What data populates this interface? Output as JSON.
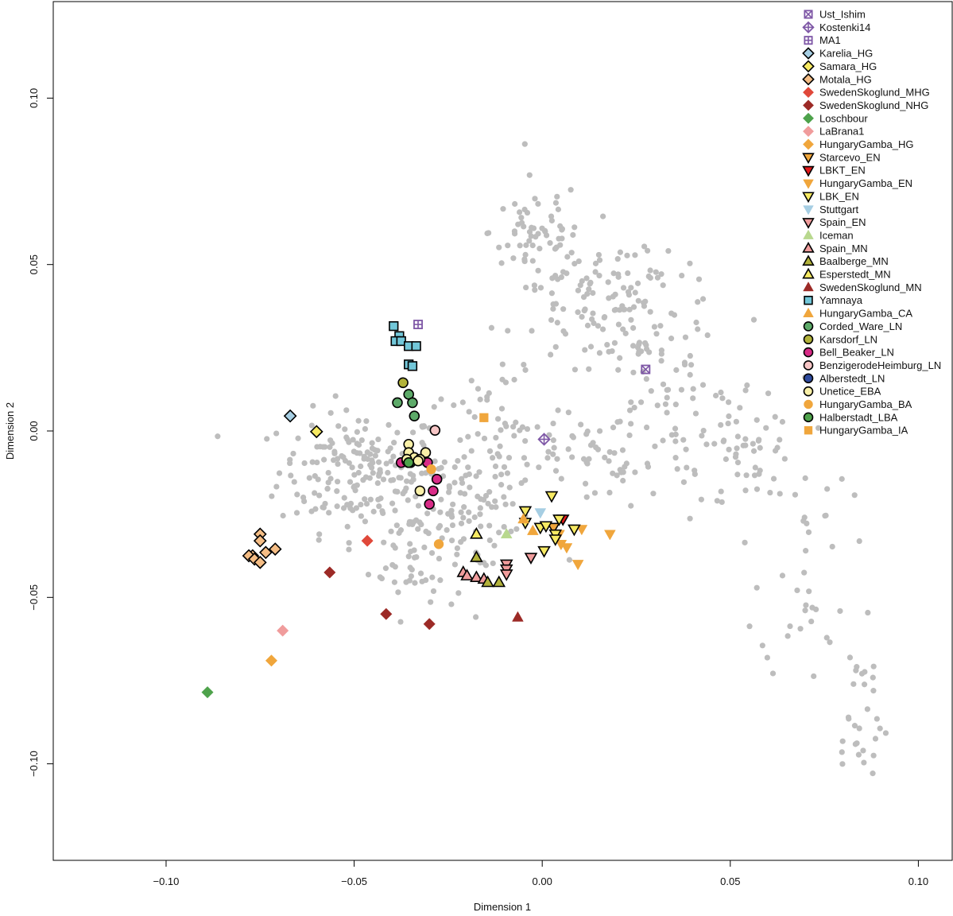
{
  "chart_data": {
    "type": "scatter",
    "title": "",
    "xlabel": "Dimension 1",
    "ylabel": "Dimension 2",
    "xlim": [
      -0.13,
      0.109
    ],
    "ylim": [
      -0.129,
      0.129
    ],
    "xticks": [
      -0.1,
      -0.05,
      0.0,
      0.05,
      0.1
    ],
    "xtick_labels": [
      "−0.10",
      "−0.05",
      "0.00",
      "0.05",
      "0.10"
    ],
    "yticks": [
      -0.1,
      -0.05,
      0.0,
      0.05,
      0.1
    ],
    "ytick_labels": [
      "−0.10",
      "−0.05",
      "0.00",
      "0.05",
      "0.10"
    ],
    "grid": false,
    "legend_position": "top-right",
    "background_points": {
      "color": "#bdbdbd",
      "clusters": [
        {
          "cx": -0.048,
          "cy": -0.012,
          "sx": 0.011,
          "sy": 0.009,
          "n": 190
        },
        {
          "cx": -0.034,
          "cy": -0.036,
          "sx": 0.006,
          "sy": 0.01,
          "n": 60
        },
        {
          "cx": -0.013,
          "cy": -0.008,
          "sx": 0.009,
          "sy": 0.012,
          "n": 80
        },
        {
          "cx": -0.002,
          "cy": 0.06,
          "sx": 0.006,
          "sy": 0.008,
          "n": 55
        },
        {
          "cx": 0.013,
          "cy": 0.04,
          "sx": 0.01,
          "sy": 0.01,
          "n": 80
        },
        {
          "cx": 0.027,
          "cy": 0.035,
          "sx": 0.011,
          "sy": 0.008,
          "n": 60
        },
        {
          "cx": 0.032,
          "cy": 0.005,
          "sx": 0.012,
          "sy": 0.014,
          "n": 70
        },
        {
          "cx": 0.015,
          "cy": -0.008,
          "sx": 0.012,
          "sy": 0.008,
          "n": 50
        },
        {
          "cx": 0.055,
          "cy": -0.005,
          "sx": 0.006,
          "sy": 0.01,
          "n": 40
        },
        {
          "cx": 0.07,
          "cy": -0.035,
          "sx": 0.006,
          "sy": 0.02,
          "n": 40
        },
        {
          "cx": 0.084,
          "cy": -0.085,
          "sx": 0.004,
          "sy": 0.013,
          "n": 30
        },
        {
          "cx": -0.022,
          "cy": -0.025,
          "sx": 0.006,
          "sy": 0.008,
          "n": 50
        }
      ]
    },
    "series": [
      {
        "name": "Ust_Ishim",
        "marker": "square-x",
        "color": "#7e57a6",
        "outline": "#7e57a6",
        "points": [
          [
            0.0275,
            0.0185
          ]
        ]
      },
      {
        "name": "Kostenki14",
        "marker": "diamond-plus",
        "color": "#7e57a6",
        "outline": "#7e57a6",
        "points": [
          [
            0.0005,
            -0.0025
          ]
        ]
      },
      {
        "name": "MA1",
        "marker": "square-plus",
        "color": "#7e57a6",
        "outline": "#7e57a6",
        "points": [
          [
            -0.033,
            0.032
          ]
        ]
      },
      {
        "name": "Karelia_HG",
        "marker": "diamond",
        "color": "#a6cee3",
        "outline": "#000000",
        "points": [
          [
            -0.067,
            0.0045
          ]
        ]
      },
      {
        "name": "Samara_HG",
        "marker": "diamond",
        "color": "#f7ea63",
        "outline": "#000000",
        "points": [
          [
            -0.06,
            -0.0002
          ]
        ]
      },
      {
        "name": "Motala_HG",
        "marker": "diamond",
        "color": "#f5bd85",
        "outline": "#000000",
        "points": [
          [
            -0.075,
            -0.031
          ],
          [
            -0.075,
            -0.033
          ],
          [
            -0.071,
            -0.0355
          ],
          [
            -0.0735,
            -0.0365
          ],
          [
            -0.077,
            -0.0375
          ],
          [
            -0.078,
            -0.0375
          ],
          [
            -0.0765,
            -0.0385
          ],
          [
            -0.075,
            -0.0395
          ]
        ]
      },
      {
        "name": "SwedenSkoglund_MHG",
        "marker": "diamond",
        "color": "#e0483a",
        "outline": "none",
        "points": [
          [
            -0.0465,
            -0.033
          ]
        ]
      },
      {
        "name": "SwedenSkoglund_NHG",
        "marker": "diamond",
        "color": "#9c2a26",
        "outline": "none",
        "points": [
          [
            -0.0565,
            -0.0425
          ],
          [
            -0.0415,
            -0.055
          ],
          [
            -0.03,
            -0.058
          ]
        ]
      },
      {
        "name": "Loschbour",
        "marker": "diamond",
        "color": "#4ea24b",
        "outline": "none",
        "points": [
          [
            -0.089,
            -0.0785
          ]
        ]
      },
      {
        "name": "LaBrana1",
        "marker": "diamond",
        "color": "#f09c9c",
        "outline": "none",
        "points": [
          [
            -0.069,
            -0.06
          ]
        ]
      },
      {
        "name": "HungaryGamba_HG",
        "marker": "diamond",
        "color": "#f0a63c",
        "outline": "none",
        "points": [
          [
            -0.072,
            -0.069
          ]
        ]
      },
      {
        "name": "Starcevo_EN",
        "marker": "triangle-down",
        "color": "#f0a63c",
        "outline": "#000000",
        "points": [
          [
            0.003,
            -0.029
          ]
        ]
      },
      {
        "name": "LBKT_EN",
        "marker": "triangle-down",
        "color": "#e31a1c",
        "outline": "#000000",
        "points": [
          [
            0.0055,
            -0.0265
          ]
        ]
      },
      {
        "name": "HungaryGamba_EN",
        "marker": "triangle-down",
        "color": "#f0a63c",
        "outline": "none",
        "points": [
          [
            0.0045,
            -0.031
          ],
          [
            0.0065,
            -0.035
          ],
          [
            0.0105,
            -0.0295
          ],
          [
            0.0095,
            -0.04
          ],
          [
            0.018,
            -0.031
          ],
          [
            0.005,
            -0.034
          ]
        ]
      },
      {
        "name": "LBK_EN",
        "marker": "triangle-down",
        "color": "#f7ea63",
        "outline": "#000000",
        "points": [
          [
            -0.0045,
            -0.024
          ],
          [
            -0.0045,
            -0.0275
          ],
          [
            -0.0005,
            -0.029
          ],
          [
            0.001,
            -0.0285
          ],
          [
            0.0025,
            -0.0195
          ],
          [
            0.0035,
            -0.031
          ],
          [
            0.0045,
            -0.0265
          ],
          [
            0.0035,
            -0.0325
          ],
          [
            0.0085,
            -0.0295
          ],
          [
            0.0005,
            -0.036
          ]
        ]
      },
      {
        "name": "Stuttgart",
        "marker": "triangle-down",
        "color": "#a6cee3",
        "outline": "none",
        "points": [
          [
            -0.0005,
            -0.0245
          ]
        ]
      },
      {
        "name": "Spain_EN",
        "marker": "triangle-down",
        "color": "#f09c9c",
        "outline": "#000000",
        "points": [
          [
            -0.0095,
            -0.04
          ],
          [
            -0.0095,
            -0.0415
          ],
          [
            -0.003,
            -0.038
          ],
          [
            -0.0095,
            -0.043
          ]
        ]
      },
      {
        "name": "Iceman",
        "marker": "triangle-up",
        "color": "#b8d88e",
        "outline": "none",
        "points": [
          [
            -0.0095,
            -0.031
          ]
        ]
      },
      {
        "name": "Spain_MN",
        "marker": "triangle-up",
        "color": "#f09c9c",
        "outline": "#000000",
        "points": [
          [
            -0.021,
            -0.0425
          ],
          [
            -0.02,
            -0.0435
          ],
          [
            -0.0175,
            -0.044
          ],
          [
            -0.0155,
            -0.0445
          ]
        ]
      },
      {
        "name": "Baalberge_MN",
        "marker": "triangle-up",
        "color": "#b2b23a",
        "outline": "#000000",
        "points": [
          [
            -0.0175,
            -0.038
          ],
          [
            -0.0145,
            -0.0455
          ],
          [
            -0.0115,
            -0.0455
          ]
        ]
      },
      {
        "name": "Esperstedt_MN",
        "marker": "triangle-up",
        "color": "#f7ea63",
        "outline": "#000000",
        "points": [
          [
            -0.0175,
            -0.031
          ]
        ]
      },
      {
        "name": "SwedenSkoglund_MN",
        "marker": "triangle-up",
        "color": "#9c2a26",
        "outline": "none",
        "points": [
          [
            -0.0065,
            -0.056
          ]
        ]
      },
      {
        "name": "Yamnaya",
        "marker": "square",
        "color": "#72c7d9",
        "outline": "#000000",
        "points": [
          [
            -0.0395,
            0.0315
          ],
          [
            -0.038,
            0.0285
          ],
          [
            -0.039,
            0.027
          ],
          [
            -0.0375,
            0.027
          ],
          [
            -0.0355,
            0.0255
          ],
          [
            -0.0335,
            0.0255
          ],
          [
            -0.0355,
            0.02
          ],
          [
            -0.0345,
            0.0195
          ]
        ]
      },
      {
        "name": "HungaryGamba_CA",
        "marker": "triangle-up",
        "color": "#f0a63c",
        "outline": "none",
        "points": [
          [
            -0.005,
            -0.0265
          ],
          [
            -0.0025,
            -0.03
          ]
        ]
      },
      {
        "name": "Corded_Ware_LN",
        "marker": "circle",
        "color": "#5daa69",
        "outline": "#000000",
        "points": [
          [
            -0.0355,
            0.011
          ],
          [
            -0.0345,
            0.0085
          ],
          [
            -0.0385,
            0.0085
          ],
          [
            -0.034,
            0.0045
          ],
          [
            -0.035,
            -0.0095
          ],
          [
            -0.0355,
            -0.0095
          ]
        ]
      },
      {
        "name": "Karsdorf_LN",
        "marker": "circle",
        "color": "#b2b23a",
        "outline": "#000000",
        "points": [
          [
            -0.037,
            0.0145
          ]
        ]
      },
      {
        "name": "Bell_Beaker_LN",
        "marker": "circle",
        "color": "#d82b87",
        "outline": "#000000",
        "points": [
          [
            -0.0375,
            -0.0095
          ],
          [
            -0.0305,
            -0.0095
          ],
          [
            -0.028,
            -0.0145
          ],
          [
            -0.029,
            -0.018
          ],
          [
            -0.03,
            -0.022
          ]
        ]
      },
      {
        "name": "BenzigerodeHeimburg_LN",
        "marker": "circle",
        "color": "#f7c6c6",
        "outline": "#000000",
        "points": [
          [
            -0.0285,
            0.0002
          ]
        ]
      },
      {
        "name": "Alberstedt_LN",
        "marker": "circle",
        "color": "#2e4a9e",
        "outline": "#000000",
        "points": [
          [
            -0.036,
            -0.009
          ]
        ]
      },
      {
        "name": "Unetice_EBA",
        "marker": "circle",
        "color": "#f9f0a8",
        "outline": "#000000",
        "points": [
          [
            -0.0355,
            -0.004
          ],
          [
            -0.0355,
            -0.0065
          ],
          [
            -0.034,
            -0.008
          ],
          [
            -0.031,
            -0.0065
          ],
          [
            -0.0325,
            -0.0085
          ],
          [
            -0.033,
            -0.009
          ],
          [
            -0.036,
            -0.0085
          ],
          [
            -0.0325,
            -0.018
          ]
        ]
      },
      {
        "name": "HungaryGamba_BA",
        "marker": "circle",
        "color": "#f0a63c",
        "outline": "none",
        "points": [
          [
            -0.0295,
            -0.0115
          ],
          [
            -0.0275,
            -0.034
          ]
        ]
      },
      {
        "name": "Halberstadt_LBA",
        "marker": "circle",
        "color": "#4ea24b",
        "outline": "#000000",
        "points": [
          [
            -0.0355,
            -0.0095
          ]
        ]
      },
      {
        "name": "HungaryGamba_IA",
        "marker": "square",
        "color": "#f0a63c",
        "outline": "none",
        "points": [
          [
            -0.0155,
            0.004
          ]
        ]
      }
    ]
  }
}
